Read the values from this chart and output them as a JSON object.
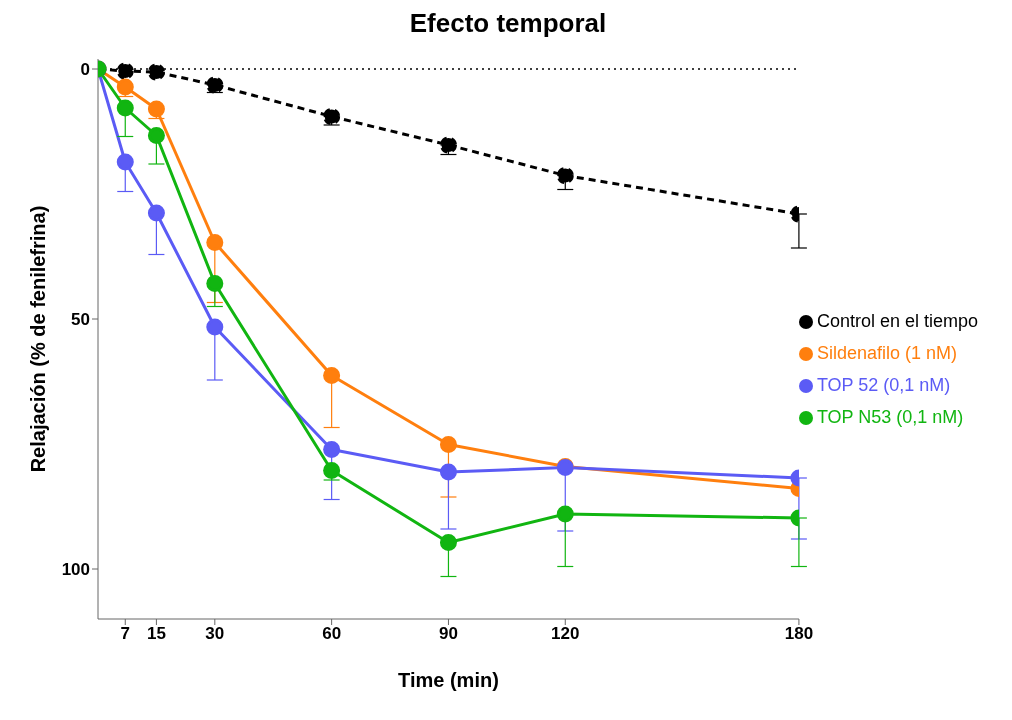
{
  "chart_data": {
    "type": "line",
    "title": "Efecto temporal",
    "xlabel": "Time (min)",
    "ylabel": "Relajación (% de fenilefrina)",
    "x": [
      0,
      7,
      15,
      30,
      60,
      90,
      120,
      180
    ],
    "series": [
      {
        "name": "Control en el tiempo",
        "color": "#000000",
        "line_style": "dashed",
        "values": [
          0,
          0.4,
          0.6,
          3.2,
          9.5,
          15.2,
          21.3,
          29.0
        ],
        "errors": [
          null,
          null,
          null,
          [
            3.2,
            4.7
          ],
          [
            9.5,
            11.2
          ],
          [
            15.2,
            17.1
          ],
          [
            21.3,
            24.1
          ],
          [
            29.0,
            35.8
          ]
        ]
      },
      {
        "name": "Sildenafilo  (1 nM)",
        "color": "#ff7f0e",
        "values": [
          0,
          3.6,
          8.0,
          34.7,
          61.3,
          75.1,
          79.5,
          83.9
        ],
        "errors": [
          null,
          [
            3.6,
            5.5
          ],
          [
            8.0,
            9.9
          ],
          [
            34.7,
            46.7
          ],
          [
            61.3,
            71.7
          ],
          [
            75.1,
            85.6
          ],
          null,
          null
        ]
      },
      {
        "name": "TOP 52 (0,1 nM)",
        "color": "#5b5bf5",
        "values": [
          0,
          18.6,
          28.8,
          51.6,
          76.1,
          80.6,
          79.7,
          81.8
        ],
        "errors": [
          null,
          [
            18.6,
            24.5
          ],
          [
            28.8,
            37.1
          ],
          [
            51.6,
            62.2
          ],
          [
            76.1,
            86.1
          ],
          [
            80.6,
            92.0
          ],
          [
            79.7,
            92.4
          ],
          [
            81.8,
            94.0
          ]
        ]
      },
      {
        "name": "TOP N53 (0,1 nM)",
        "color": "#11b511",
        "values": [
          0,
          7.8,
          13.3,
          42.9,
          80.3,
          94.7,
          89.0,
          89.8
        ],
        "errors": [
          null,
          [
            7.8,
            13.5
          ],
          [
            13.3,
            19.0
          ],
          [
            42.9,
            47.5
          ],
          [
            80.3,
            82.2
          ],
          [
            94.7,
            101.5
          ],
          [
            89.0,
            99.5
          ],
          [
            89.8,
            99.5
          ]
        ]
      }
    ],
    "xlim": [
      0,
      180
    ],
    "xticks": [
      7,
      15,
      30,
      60,
      90,
      120,
      180
    ],
    "ylim": [
      110,
      -2
    ],
    "yticks": [
      0,
      50,
      100
    ],
    "ref_lines": [
      {
        "axis": "y",
        "value": 0,
        "label": null,
        "color": "#000000",
        "line_style": "dotted"
      }
    ],
    "grid": false,
    "legend": "right",
    "marker": "circle",
    "line_style": "solid"
  }
}
